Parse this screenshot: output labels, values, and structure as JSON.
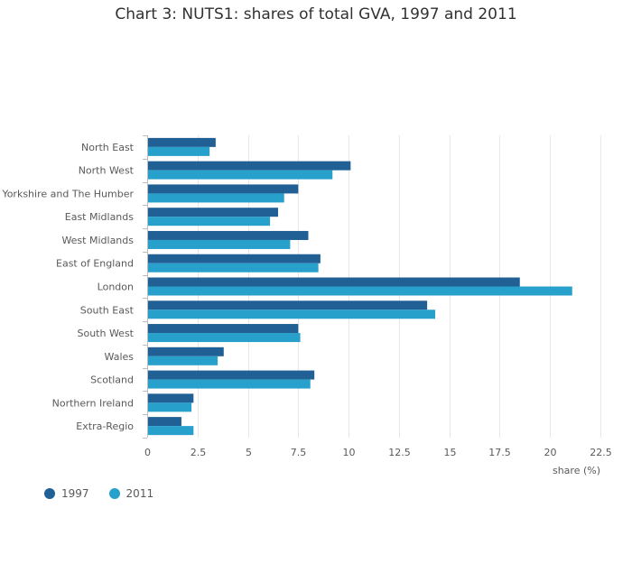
{
  "chart_data": {
    "type": "bar",
    "orientation": "horizontal",
    "title": "Chart 3: NUTS1: shares of total GVA, 1997 and 2011",
    "xlabel": "share (%)",
    "ylabel": "",
    "xlim": [
      0,
      22.5
    ],
    "xticks": [
      "0",
      "2.5",
      "5",
      "7.5",
      "10",
      "12.5",
      "15",
      "17.5",
      "20",
      "22.5"
    ],
    "grid": true,
    "legend_position": "bottom-left",
    "categories": [
      "North East",
      "North West",
      "Yorkshire and The Humber",
      "East Midlands",
      "West Midlands",
      "East of England",
      "London",
      "South East",
      "South West",
      "Wales",
      "Scotland",
      "Northern Ireland",
      "Extra-Regio"
    ],
    "series": [
      {
        "name": "1997",
        "color": "#206095",
        "values": [
          3.4,
          10.1,
          7.5,
          6.5,
          8.0,
          8.6,
          18.5,
          13.9,
          7.5,
          3.8,
          8.3,
          2.3,
          1.7
        ]
      },
      {
        "name": "2011",
        "color": "#27a0cc",
        "values": [
          3.1,
          9.2,
          6.8,
          6.1,
          7.1,
          8.5,
          21.1,
          14.3,
          7.6,
          3.5,
          8.1,
          2.2,
          2.3
        ]
      }
    ]
  }
}
